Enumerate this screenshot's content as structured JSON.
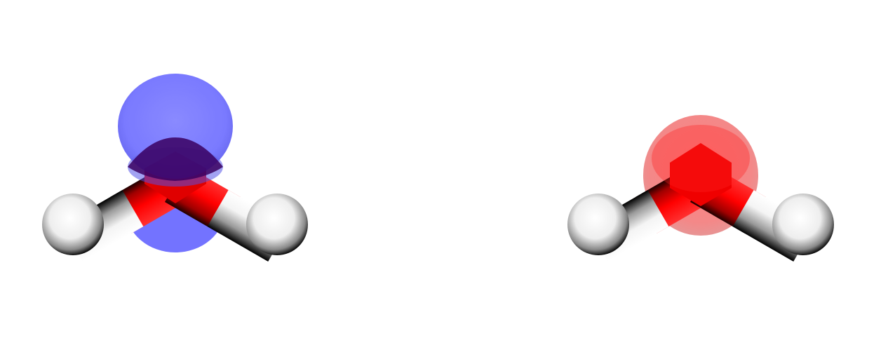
{
  "scene": {
    "background_color": "#ffffff",
    "molecule": "H2O",
    "render_style": "licorice",
    "panels": [
      {
        "panel": "left",
        "isosurface_color": "#5c5cff",
        "isosurface_opacity": 0.85,
        "atom_colors": {
          "O": "#ff0000",
          "H": "#ffffff"
        }
      },
      {
        "panel": "right",
        "isosurface_color": "#ff4040",
        "isosurface_opacity": 0.55,
        "atom_colors": {
          "O": "#ff0000",
          "H": "#ffffff"
        }
      }
    ]
  }
}
